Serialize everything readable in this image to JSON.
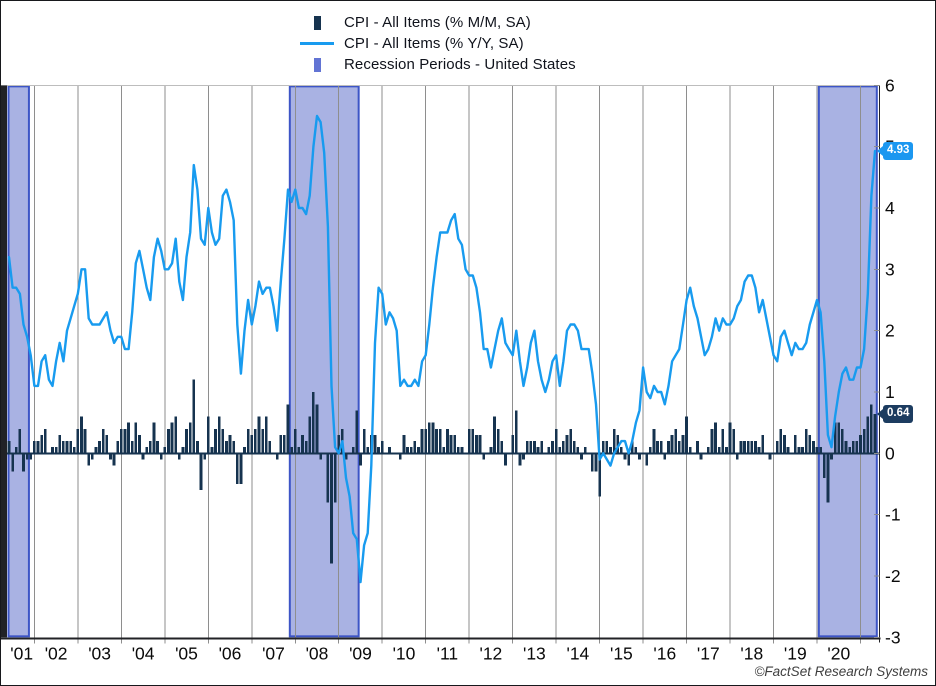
{
  "legend": {
    "items": [
      {
        "label": "CPI - All Items (% M/M, SA)",
        "swatch": "bar",
        "color": "#16334F"
      },
      {
        "label": "CPI - All Items (% Y/Y, SA)",
        "swatch": "line",
        "color": "#189BEF"
      },
      {
        "label": "Recession Periods - United States",
        "swatch": "band",
        "color": "#6274D4"
      }
    ]
  },
  "callouts": {
    "yoy": "4.93",
    "mom": "0.64"
  },
  "footer": {
    "copyright": "©FactSet Research Systems"
  },
  "theme": {
    "line_color": "#189BEF",
    "bar_color": "#16334F",
    "band_fill": "#A9B2E3",
    "band_border": "#3D55C6",
    "grid_color": "#8E8E8E",
    "axis_color": "#212226",
    "top_border_color": "#BDBDBD",
    "tick_label_color": "#0A0A0A",
    "callout_yoy_bg": "#1B97F0",
    "callout_mom_bg": "#1C3C60"
  },
  "chart_data": {
    "type": "combo",
    "frequency": "monthly",
    "x_start": "2001-06",
    "x_end": "2021-05",
    "ylim": [
      -3,
      6
    ],
    "y_ticks": [
      -3,
      -2,
      -1,
      0,
      1,
      2,
      3,
      4,
      5,
      6
    ],
    "x_tick_labels": [
      "'01",
      "'02",
      "'03",
      "'04",
      "'05",
      "'06",
      "'07",
      "'08",
      "'09",
      "'10",
      "'11",
      "'12",
      "'13",
      "'14",
      "'15",
      "'16",
      "'17",
      "'18",
      "'19",
      "'20"
    ],
    "grid": true,
    "legend_position": "top-center",
    "last_values": {
      "yoy": 4.93,
      "mom": 0.64
    },
    "recessions": [
      {
        "name": "Recession - United States",
        "from": "2001-06",
        "to": "2001-11"
      },
      {
        "name": "Recession - United States",
        "from": "2007-12",
        "to": "2009-06"
      },
      {
        "name": "Recession - United States",
        "from": "2020-02",
        "to": "2021-05"
      }
    ],
    "series": [
      {
        "name": "CPI - All Items (% M/M, SA)",
        "type": "bar",
        "values": [
          0.2,
          -0.3,
          0.1,
          0.4,
          -0.3,
          -0.1,
          -0.1,
          0.2,
          0.2,
          0.3,
          0.4,
          0.0,
          0.1,
          0.1,
          0.3,
          0.2,
          0.2,
          0.2,
          0.1,
          0.4,
          0.6,
          0.4,
          -0.2,
          -0.1,
          0.1,
          0.2,
          0.4,
          0.3,
          -0.1,
          -0.2,
          0.2,
          0.4,
          0.4,
          0.5,
          0.2,
          0.5,
          0.3,
          -0.1,
          0.1,
          0.2,
          0.5,
          0.2,
          -0.1,
          0.1,
          0.4,
          0.5,
          0.6,
          -0.1,
          0.1,
          0.4,
          0.5,
          1.2,
          0.2,
          -0.6,
          -0.1,
          0.6,
          0.1,
          0.4,
          0.6,
          0.4,
          0.2,
          0.3,
          0.2,
          -0.5,
          -0.5,
          0.1,
          0.4,
          0.3,
          0.4,
          0.6,
          0.4,
          0.6,
          0.2,
          0.0,
          -0.1,
          0.3,
          0.3,
          0.8,
          0.1,
          0.4,
          0.1,
          0.3,
          0.2,
          0.6,
          1.0,
          0.8,
          -0.1,
          0.0,
          -0.8,
          -1.8,
          -0.8,
          0.3,
          0.4,
          -0.1,
          0.0,
          0.1,
          0.7,
          -0.2,
          0.4,
          0.1,
          0.3,
          0.3,
          0.1,
          0.2,
          0.0,
          0.1,
          0.0,
          0.0,
          -0.1,
          0.3,
          0.1,
          0.1,
          0.2,
          0.1,
          0.4,
          0.4,
          0.5,
          0.5,
          0.4,
          0.4,
          0.1,
          0.4,
          0.3,
          0.3,
          0.1,
          0.1,
          0.0,
          0.4,
          0.4,
          0.3,
          0.3,
          -0.1,
          0.0,
          0.1,
          0.6,
          0.4,
          0.2,
          -0.2,
          0.0,
          0.3,
          0.7,
          -0.2,
          -0.1,
          0.2,
          0.2,
          0.2,
          0.1,
          0.2,
          0.0,
          0.1,
          0.2,
          0.4,
          0.1,
          0.2,
          0.3,
          0.4,
          0.2,
          0.1,
          -0.1,
          0.1,
          0.0,
          -0.3,
          -0.3,
          -0.7,
          0.2,
          0.2,
          0.1,
          0.4,
          0.3,
          0.1,
          -0.1,
          -0.2,
          0.2,
          0.1,
          -0.1,
          0.0,
          -0.2,
          0.1,
          0.4,
          0.2,
          0.2,
          -0.1,
          0.2,
          0.3,
          0.4,
          0.2,
          0.3,
          0.6,
          0.1,
          0.0,
          0.2,
          -0.1,
          0.0,
          0.1,
          0.4,
          0.5,
          0.1,
          0.4,
          0.1,
          0.5,
          0.4,
          -0.1,
          0.2,
          0.2,
          0.2,
          0.2,
          0.2,
          0.1,
          0.3,
          0.0,
          -0.1,
          0.0,
          0.2,
          0.4,
          0.3,
          0.1,
          0.0,
          0.3,
          0.1,
          0.1,
          0.4,
          0.3,
          0.2,
          0.1,
          0.1,
          -0.4,
          -0.8,
          -0.1,
          0.5,
          0.5,
          0.4,
          0.2,
          0.1,
          0.2,
          0.2,
          0.3,
          0.4,
          0.6,
          0.8,
          0.64
        ]
      },
      {
        "name": "CPI - All Items (% Y/Y, SA)",
        "type": "line",
        "values": [
          3.2,
          2.7,
          2.7,
          2.6,
          2.1,
          1.9,
          1.6,
          1.1,
          1.1,
          1.5,
          1.6,
          1.2,
          1.1,
          1.5,
          1.8,
          1.5,
          2.0,
          2.2,
          2.4,
          2.6,
          3.0,
          3.0,
          2.2,
          2.1,
          2.1,
          2.1,
          2.2,
          2.3,
          2.0,
          1.8,
          1.9,
          1.9,
          1.7,
          1.7,
          2.3,
          3.1,
          3.3,
          3.0,
          2.7,
          2.5,
          3.2,
          3.5,
          3.3,
          3.0,
          3.0,
          3.1,
          3.5,
          2.8,
          2.5,
          3.2,
          3.6,
          4.7,
          4.3,
          3.5,
          3.4,
          4.0,
          3.6,
          3.4,
          3.5,
          4.2,
          4.3,
          4.1,
          3.8,
          2.1,
          1.3,
          2.0,
          2.5,
          2.1,
          2.4,
          2.8,
          2.6,
          2.7,
          2.7,
          2.4,
          2.0,
          2.8,
          3.5,
          4.3,
          4.1,
          4.3,
          4.0,
          4.0,
          3.9,
          4.2,
          5.0,
          5.5,
          5.4,
          4.9,
          3.7,
          1.1,
          0.1,
          0.0,
          0.2,
          -0.4,
          -0.7,
          -1.3,
          -1.4,
          -2.1,
          -1.5,
          -1.3,
          -0.2,
          1.8,
          2.7,
          2.6,
          2.1,
          2.3,
          2.2,
          2.0,
          1.1,
          1.2,
          1.1,
          1.1,
          1.2,
          1.1,
          1.5,
          1.6,
          2.1,
          2.7,
          3.2,
          3.6,
          3.6,
          3.6,
          3.8,
          3.9,
          3.5,
          3.4,
          3.0,
          2.9,
          2.9,
          2.7,
          2.3,
          1.7,
          1.7,
          1.4,
          1.7,
          2.0,
          2.2,
          1.8,
          1.7,
          1.6,
          2.0,
          1.5,
          1.1,
          1.4,
          1.8,
          2.0,
          1.5,
          1.2,
          1.0,
          1.2,
          1.5,
          1.6,
          1.1,
          1.5,
          2.0,
          2.1,
          2.1,
          2.0,
          1.7,
          1.7,
          1.7,
          1.3,
          0.8,
          -0.1,
          0.0,
          -0.1,
          -0.2,
          0.0,
          0.1,
          0.2,
          0.2,
          0.0,
          0.2,
          0.5,
          0.7,
          1.4,
          1.0,
          0.9,
          1.1,
          1.0,
          1.0,
          0.8,
          1.1,
          1.5,
          1.6,
          1.7,
          2.1,
          2.5,
          2.7,
          2.4,
          2.2,
          1.9,
          1.6,
          1.7,
          1.9,
          2.2,
          2.0,
          2.2,
          2.1,
          2.1,
          2.2,
          2.4,
          2.5,
          2.8,
          2.9,
          2.9,
          2.7,
          2.3,
          2.5,
          2.2,
          1.9,
          1.6,
          1.5,
          1.9,
          2.0,
          1.8,
          1.6,
          1.8,
          1.7,
          1.7,
          1.8,
          2.1,
          2.3,
          2.5,
          2.3,
          1.5,
          0.3,
          0.1,
          0.6,
          1.0,
          1.3,
          1.4,
          1.2,
          1.2,
          1.4,
          1.4,
          1.7,
          2.6,
          4.2,
          4.93
        ]
      }
    ]
  }
}
